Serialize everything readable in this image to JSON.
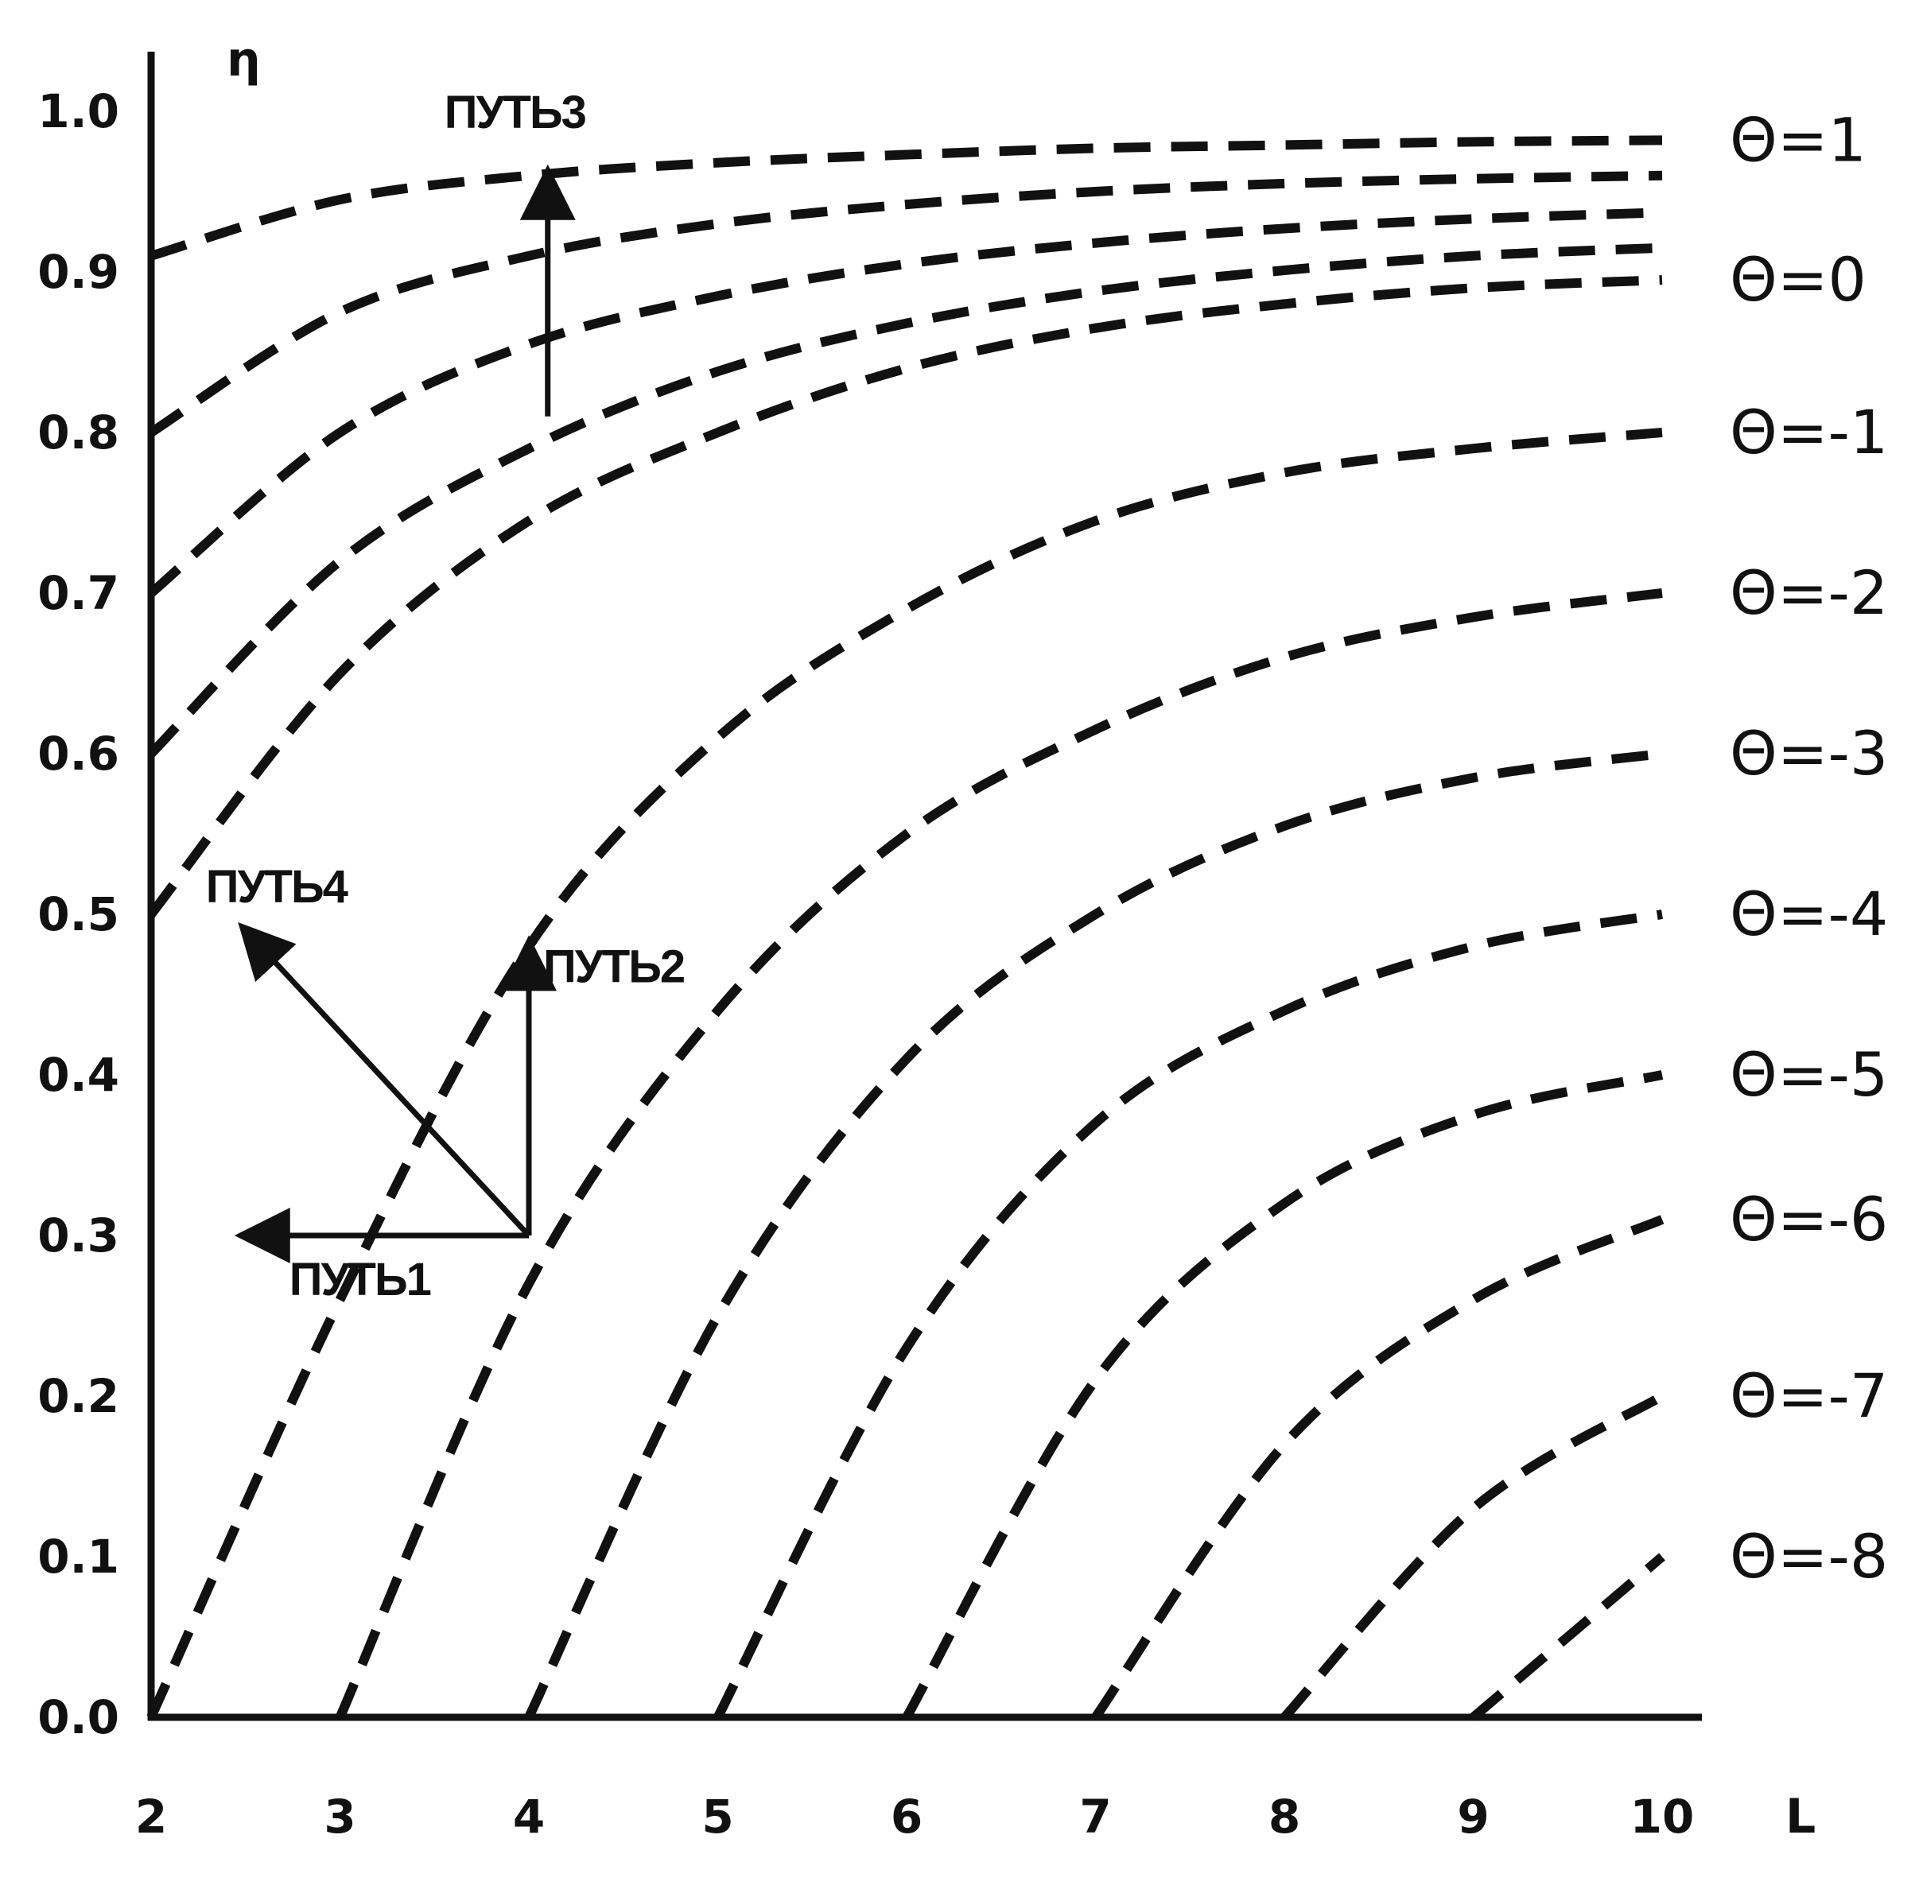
{
  "chart_data": {
    "type": "line",
    "title": "",
    "xlabel": "L",
    "ylabel": "η",
    "xlim": [
      2,
      10
    ],
    "ylim": [
      0,
      1.0
    ],
    "x_ticks": [
      "2",
      "3",
      "4",
      "5",
      "6",
      "7",
      "8",
      "9",
      "10"
    ],
    "y_ticks": [
      "0.0",
      "0.1",
      "0.2",
      "0.3",
      "0.4",
      "0.5",
      "0.6",
      "0.7",
      "0.8",
      "0.9",
      "1.0"
    ],
    "grid": false,
    "series": [
      {
        "name": "Θ=1",
        "label": "Θ=1",
        "x": [
          2,
          3,
          4,
          5,
          6,
          7,
          8,
          9,
          10
        ],
        "y": [
          0.91,
          0.945,
          0.96,
          0.968,
          0.973,
          0.977,
          0.979,
          0.981,
          0.982
        ]
      },
      {
        "name": "",
        "label": "",
        "x": [
          2,
          3,
          4,
          5,
          6,
          7,
          8,
          9,
          10
        ],
        "y": [
          0.8,
          0.875,
          0.91,
          0.93,
          0.942,
          0.95,
          0.955,
          0.958,
          0.96
        ]
      },
      {
        "name": "",
        "label": "",
        "x": [
          2,
          3,
          4,
          5,
          6,
          7,
          8,
          9,
          10
        ],
        "y": [
          0.7,
          0.8,
          0.855,
          0.885,
          0.905,
          0.918,
          0.927,
          0.933,
          0.937
        ]
      },
      {
        "name": "",
        "label": "",
        "x": [
          2,
          3,
          4,
          5,
          6,
          7,
          8,
          9,
          10
        ],
        "y": [
          0.6,
          0.72,
          0.79,
          0.838,
          0.868,
          0.888,
          0.901,
          0.91,
          0.915
        ]
      },
      {
        "name": "Θ=0",
        "label": "Θ=0",
        "x": [
          2,
          3,
          4,
          5,
          6,
          7,
          8,
          9,
          10
        ],
        "y": [
          0.5,
          0.65,
          0.745,
          0.8,
          0.84,
          0.865,
          0.88,
          0.89,
          0.895
        ]
      },
      {
        "name": "Θ=-1",
        "label": "Θ=-1",
        "x": [
          2,
          3,
          4,
          5,
          6,
          7,
          8,
          9,
          10
        ],
        "y": [
          0.0,
          0.26,
          0.48,
          0.61,
          0.69,
          0.745,
          0.775,
          0.79,
          0.8
        ]
      },
      {
        "name": "Θ=-2",
        "label": "Θ=-2",
        "x": [
          3,
          4,
          5,
          6,
          7,
          8,
          9,
          10
        ],
        "y": [
          0.0,
          0.27,
          0.44,
          0.55,
          0.615,
          0.66,
          0.685,
          0.7
        ]
      },
      {
        "name": "Θ=-3",
        "label": "Θ=-3",
        "x": [
          4,
          5,
          6,
          7,
          8,
          9,
          10
        ],
        "y": [
          0.0,
          0.25,
          0.41,
          0.5,
          0.555,
          0.585,
          0.6
        ]
      },
      {
        "name": "Θ=-4",
        "label": "Θ=-4",
        "x": [
          5,
          6,
          7,
          8,
          9,
          10
        ],
        "y": [
          0.0,
          0.23,
          0.37,
          0.44,
          0.48,
          0.5
        ]
      },
      {
        "name": "Θ=-5",
        "label": "Θ=-5",
        "x": [
          6,
          7,
          8,
          9,
          10
        ],
        "y": [
          0.0,
          0.21,
          0.32,
          0.375,
          0.4
        ]
      },
      {
        "name": "Θ=-6",
        "label": "Θ=-6",
        "x": [
          7,
          8,
          9,
          10
        ],
        "y": [
          0.0,
          0.17,
          0.26,
          0.31
        ]
      },
      {
        "name": "Θ=-7",
        "label": "Θ=-7",
        "x": [
          8,
          9,
          10
        ],
        "y": [
          0.0,
          0.13,
          0.2
        ]
      },
      {
        "name": "Θ=-8",
        "label": "Θ=-8",
        "x": [
          9,
          10
        ],
        "y": [
          0.0,
          0.1
        ]
      }
    ],
    "annotations": [
      {
        "label": "ПУТЬ1",
        "from": [
          4.0,
          0.3
        ],
        "to": [
          2.5,
          0.3
        ]
      },
      {
        "label": "ПУТЬ2",
        "from": [
          4.0,
          0.3
        ],
        "to": [
          4.0,
          0.48
        ]
      },
      {
        "label": "ПУТЬ3",
        "from": [
          4.1,
          0.81
        ],
        "to": [
          4.1,
          0.96
        ]
      },
      {
        "label": "ПУТЬ4",
        "from": [
          4.0,
          0.3
        ],
        "to": [
          2.5,
          0.49
        ]
      }
    ]
  }
}
